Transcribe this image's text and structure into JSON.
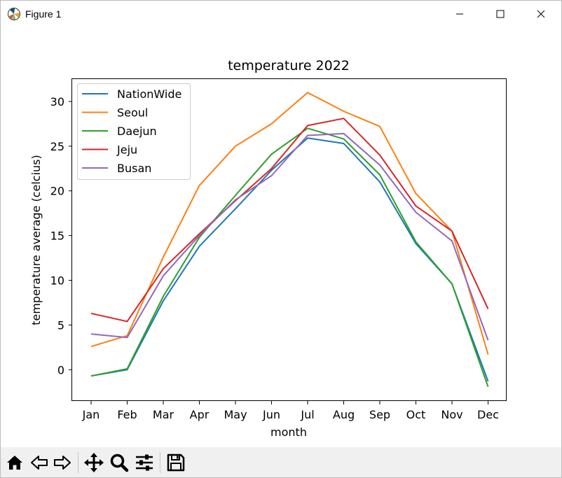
{
  "window": {
    "title": "Figure 1",
    "icons": [
      "matplotlib-icon",
      "minimize-icon",
      "maximize-icon",
      "close-icon"
    ]
  },
  "toolbar": {
    "buttons": [
      {
        "name": "home-button",
        "icon": "home-icon"
      },
      {
        "name": "back-button",
        "icon": "back-arrow-icon"
      },
      {
        "name": "forward-button",
        "icon": "forward-arrow-icon"
      },
      {
        "name": "pan-button",
        "icon": "move-icon"
      },
      {
        "name": "zoom-button",
        "icon": "zoom-icon"
      },
      {
        "name": "configure-subplots-button",
        "icon": "sliders-icon"
      },
      {
        "name": "save-button",
        "icon": "save-icon"
      }
    ]
  },
  "chart_data": {
    "type": "line",
    "title": "temperature 2022",
    "xlabel": "month",
    "ylabel": "temperature average (celcius)",
    "categories": [
      "Jan",
      "Feb",
      "Mar",
      "Apr",
      "May",
      "Jun",
      "Jul",
      "Aug",
      "Sep",
      "Oct",
      "Nov",
      "Dec"
    ],
    "ylim": [
      -3.5,
      32.5
    ],
    "yticks": [
      0,
      5,
      10,
      15,
      20,
      25,
      30
    ],
    "legend_position": "upper-left",
    "grid": false,
    "series": [
      {
        "name": "NationWide",
        "color": "#1f77b4",
        "values": [
          -0.7,
          0.0,
          7.7,
          13.8,
          18.0,
          22.3,
          25.9,
          25.3,
          21.0,
          14.1,
          9.6,
          -1.3
        ]
      },
      {
        "name": "Seoul",
        "color": "#ff7f0e",
        "values": [
          2.6,
          3.8,
          12.6,
          20.6,
          25.0,
          27.5,
          31.0,
          28.9,
          27.2,
          19.7,
          15.5,
          1.7
        ]
      },
      {
        "name": "Daejun",
        "color": "#2ca02c",
        "values": [
          -0.7,
          0.1,
          8.2,
          14.8,
          19.5,
          24.1,
          27.0,
          25.8,
          21.8,
          14.3,
          9.6,
          -1.9
        ]
      },
      {
        "name": "Jeju",
        "color": "#d62728",
        "values": [
          6.3,
          5.4,
          11.3,
          15.2,
          18.9,
          22.5,
          27.3,
          28.1,
          24.0,
          18.3,
          15.5,
          6.8
        ]
      },
      {
        "name": "Busan",
        "color": "#9467bd",
        "values": [
          4.0,
          3.6,
          10.5,
          15.0,
          19.0,
          21.7,
          26.2,
          26.4,
          22.9,
          17.6,
          14.4,
          3.3
        ]
      }
    ]
  }
}
